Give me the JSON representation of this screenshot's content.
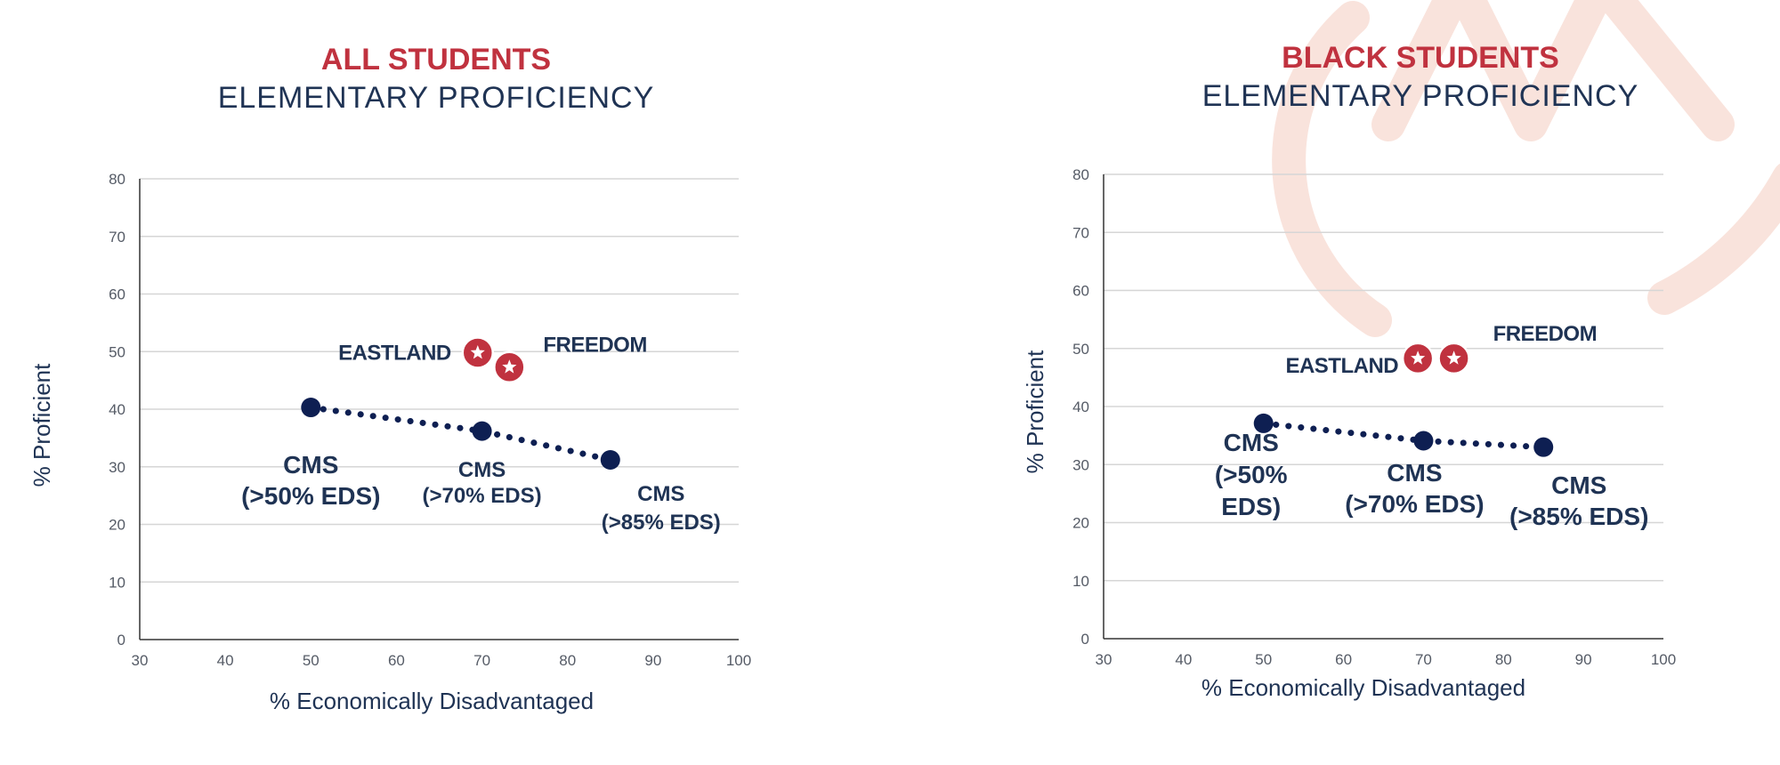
{
  "colors": {
    "navy": "#0e1f52",
    "dark_text": "#1f3354",
    "red": "#c0323f",
    "watermark": "#f9e3dc"
  },
  "icons": {
    "school_marker": "star-in-circle-icon",
    "watermark": "logo-watermark"
  },
  "chart_data": [
    {
      "type": "scatter",
      "title": "ALL STUDENTS",
      "subtitle": "ELEMENTARY PROFICIENCY",
      "xlabel": "% Economically Disadvantaged",
      "ylabel": "% Proficient",
      "xlim": [
        30,
        100
      ],
      "ylim": [
        0,
        80
      ],
      "x_ticks": [
        "30",
        "40",
        "50",
        "60",
        "70",
        "80",
        "90",
        "100"
      ],
      "y_ticks": [
        "0",
        "10",
        "20",
        "30",
        "40",
        "50",
        "60",
        "70",
        "80"
      ],
      "grid": true,
      "cms_series": [
        {
          "label_lines": [
            "CMS",
            "(>50% EDS)"
          ],
          "x": 50,
          "y": 40.3
        },
        {
          "label_lines": [
            "CMS",
            "(>70% EDS)"
          ],
          "x": 70,
          "y": 36.2
        },
        {
          "label_lines": [
            "CMS",
            "(>85% EDS)"
          ],
          "x": 85,
          "y": 31.2
        }
      ],
      "schools": [
        {
          "name": "EASTLAND",
          "x": 69.5,
          "y": 49.8
        },
        {
          "name": "FREEDOM",
          "x": 73.2,
          "y": 47.3
        }
      ]
    },
    {
      "type": "scatter",
      "title": "BLACK STUDENTS",
      "subtitle": "ELEMENTARY PROFICIENCY",
      "xlabel": "% Economically Disadvantaged",
      "ylabel": "% Proficient",
      "xlim": [
        30,
        100
      ],
      "ylim": [
        0,
        80
      ],
      "x_ticks": [
        "30",
        "40",
        "50",
        "60",
        "70",
        "80",
        "90",
        "100"
      ],
      "y_ticks": [
        "0",
        "10",
        "20",
        "30",
        "40",
        "50",
        "60",
        "70",
        "80"
      ],
      "grid": true,
      "cms_series": [
        {
          "label_lines": [
            "CMS",
            "(>50%",
            "EDS)"
          ],
          "x": 50,
          "y": 37.1
        },
        {
          "label_lines": [
            "CMS",
            "(>70% EDS)"
          ],
          "x": 70,
          "y": 34.1
        },
        {
          "label_lines": [
            "CMS",
            "(>85% EDS)"
          ],
          "x": 85,
          "y": 33.0
        }
      ],
      "schools": [
        {
          "name": "EASTLAND",
          "x": 69.3,
          "y": 48.3
        },
        {
          "name": "FREEDOM",
          "x": 73.8,
          "y": 48.3
        }
      ]
    }
  ]
}
